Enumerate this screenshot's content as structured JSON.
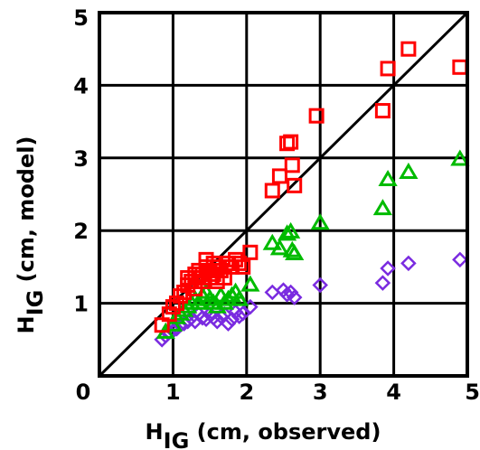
{
  "chart_data": {
    "type": "scatter",
    "title": "",
    "xlabel": {
      "main": "H",
      "sub": "IG",
      "rest": " (cm, observed)"
    },
    "ylabel": {
      "main": "H",
      "sub": "IG",
      "rest": " (cm, model)"
    },
    "xlim": [
      0,
      5
    ],
    "ylim": [
      0,
      5
    ],
    "xticks": [
      "0",
      "1",
      "2",
      "3",
      "4",
      "5"
    ],
    "yticks": [
      "1",
      "2",
      "3",
      "4",
      "5"
    ],
    "grid": true,
    "reference_line": "1:1",
    "series": [
      {
        "marker": "square",
        "color": "#ff0000",
        "x": [
          0.85,
          0.95,
          1.0,
          1.05,
          1.1,
          1.15,
          1.2,
          1.2,
          1.25,
          1.3,
          1.3,
          1.35,
          1.35,
          1.4,
          1.4,
          1.45,
          1.45,
          1.5,
          1.5,
          1.55,
          1.55,
          1.6,
          1.6,
          1.65,
          1.7,
          1.75,
          1.8,
          1.85,
          1.9,
          1.95,
          2.05,
          2.35,
          2.45,
          2.55,
          2.6,
          2.62,
          2.65,
          2.95,
          3.85,
          3.92,
          4.2,
          4.9
        ],
        "y": [
          0.7,
          0.85,
          0.95,
          1.0,
          1.1,
          1.15,
          1.25,
          1.35,
          1.3,
          1.4,
          1.2,
          1.35,
          1.45,
          1.4,
          1.3,
          1.5,
          1.6,
          1.45,
          1.35,
          1.4,
          1.55,
          1.3,
          1.5,
          1.45,
          1.35,
          1.55,
          1.5,
          1.6,
          1.55,
          1.5,
          1.7,
          2.55,
          2.75,
          3.2,
          3.22,
          2.9,
          2.62,
          3.58,
          3.65,
          4.23,
          4.5,
          4.25
        ]
      },
      {
        "marker": "triangle",
        "color": "#00bb00",
        "x": [
          0.9,
          1.0,
          1.05,
          1.1,
          1.15,
          1.2,
          1.25,
          1.3,
          1.35,
          1.4,
          1.45,
          1.5,
          1.55,
          1.6,
          1.65,
          1.7,
          1.75,
          1.8,
          1.85,
          1.9,
          2.05,
          2.35,
          2.45,
          2.55,
          2.6,
          2.62,
          2.65,
          3.0,
          3.85,
          3.92,
          4.2,
          4.9
        ],
        "y": [
          0.6,
          0.7,
          0.8,
          0.85,
          0.9,
          0.95,
          1.0,
          1.05,
          1.0,
          1.1,
          1.15,
          1.05,
          1.0,
          0.95,
          1.1,
          1.0,
          1.05,
          1.1,
          1.15,
          1.05,
          1.25,
          1.82,
          1.75,
          1.95,
          1.98,
          1.72,
          1.68,
          2.1,
          2.3,
          2.7,
          2.8,
          2.98
        ]
      },
      {
        "marker": "diamond",
        "color": "#7a2be0",
        "x": [
          0.85,
          0.9,
          0.95,
          1.0,
          1.05,
          1.1,
          1.15,
          1.2,
          1.25,
          1.3,
          1.35,
          1.4,
          1.45,
          1.5,
          1.55,
          1.6,
          1.65,
          1.7,
          1.75,
          1.8,
          1.85,
          1.9,
          1.95,
          2.05,
          2.35,
          2.5,
          2.55,
          2.6,
          2.65,
          3.0,
          3.85,
          3.92,
          4.2,
          4.9
        ],
        "y": [
          0.5,
          0.55,
          0.6,
          0.62,
          0.65,
          0.7,
          0.72,
          0.75,
          0.8,
          0.75,
          0.85,
          0.8,
          0.78,
          0.85,
          0.8,
          0.75,
          0.82,
          0.85,
          0.72,
          0.78,
          0.88,
          0.82,
          0.86,
          0.95,
          1.15,
          1.18,
          1.12,
          1.15,
          1.08,
          1.25,
          1.28,
          1.48,
          1.55,
          1.6
        ]
      }
    ]
  }
}
